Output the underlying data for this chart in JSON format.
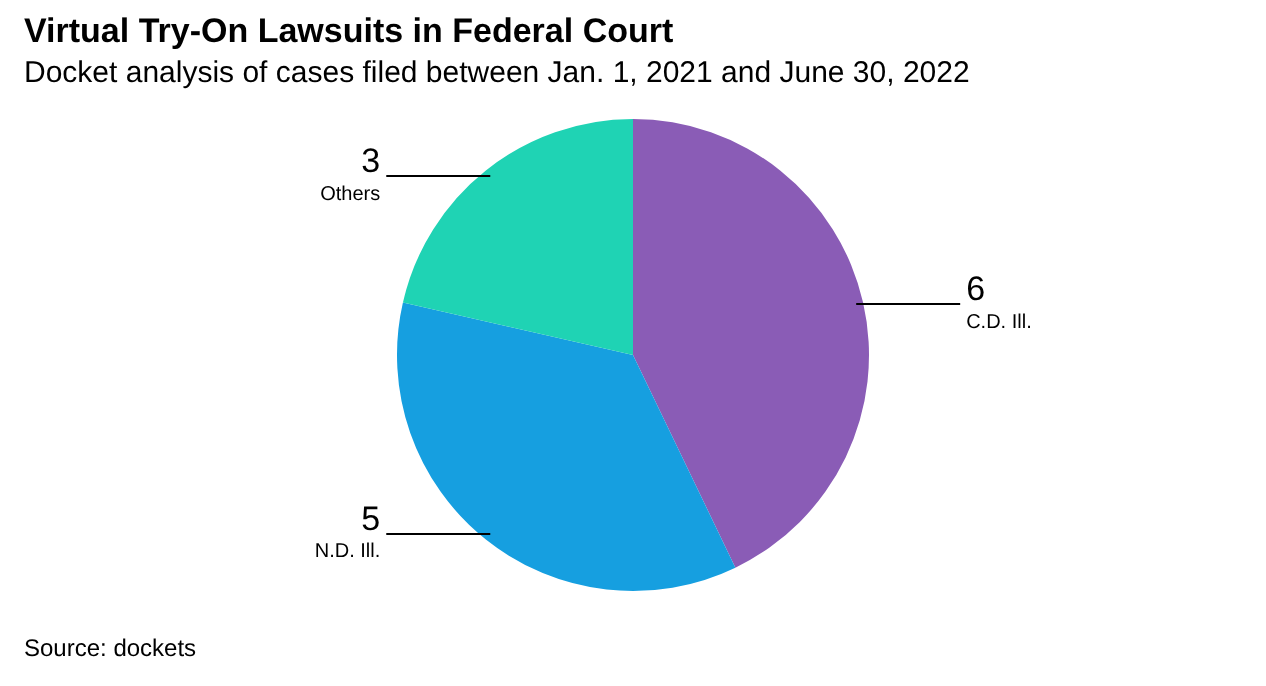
{
  "chart_data": {
    "type": "pie",
    "title": "Virtual Try-On Lawsuits in Federal Court",
    "subtitle": "Docket analysis of cases filed between Jan. 1, 2021 and June 30, 2022",
    "categories": [
      "C.D. Ill.",
      "N.D. Ill.",
      "Others"
    ],
    "values": [
      6,
      5,
      3
    ],
    "colors": [
      "#8a5cb6",
      "#169fe0",
      "#1fd3b4"
    ],
    "data_labels": true,
    "legend": false,
    "annotations": [
      "Source: dockets"
    ]
  }
}
